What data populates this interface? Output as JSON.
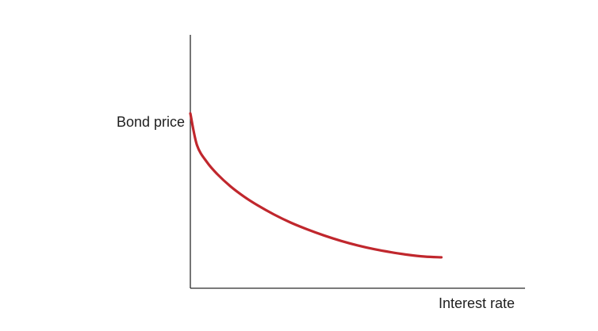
{
  "chart_data": {
    "type": "line",
    "title": "",
    "xlabel": "Interest rate",
    "ylabel": "Bond price",
    "grid": false,
    "ticks": false,
    "xlim": [
      0,
      100
    ],
    "ylim": [
      0,
      100
    ],
    "series": [
      {
        "color": "#c0272d",
        "x": [
          0,
          2,
          5,
          8,
          12,
          16,
          20,
          25,
          30,
          35,
          40,
          45,
          50,
          55,
          60,
          65,
          70,
          75
        ],
        "y": [
          69,
          56.4,
          49.7,
          45.1,
          40.2,
          36.2,
          32.8,
          29.1,
          25.9,
          23.2,
          20.8,
          18.7,
          16.9,
          15.4,
          14.2,
          13.2,
          12.5,
          12.2
        ]
      }
    ]
  }
}
